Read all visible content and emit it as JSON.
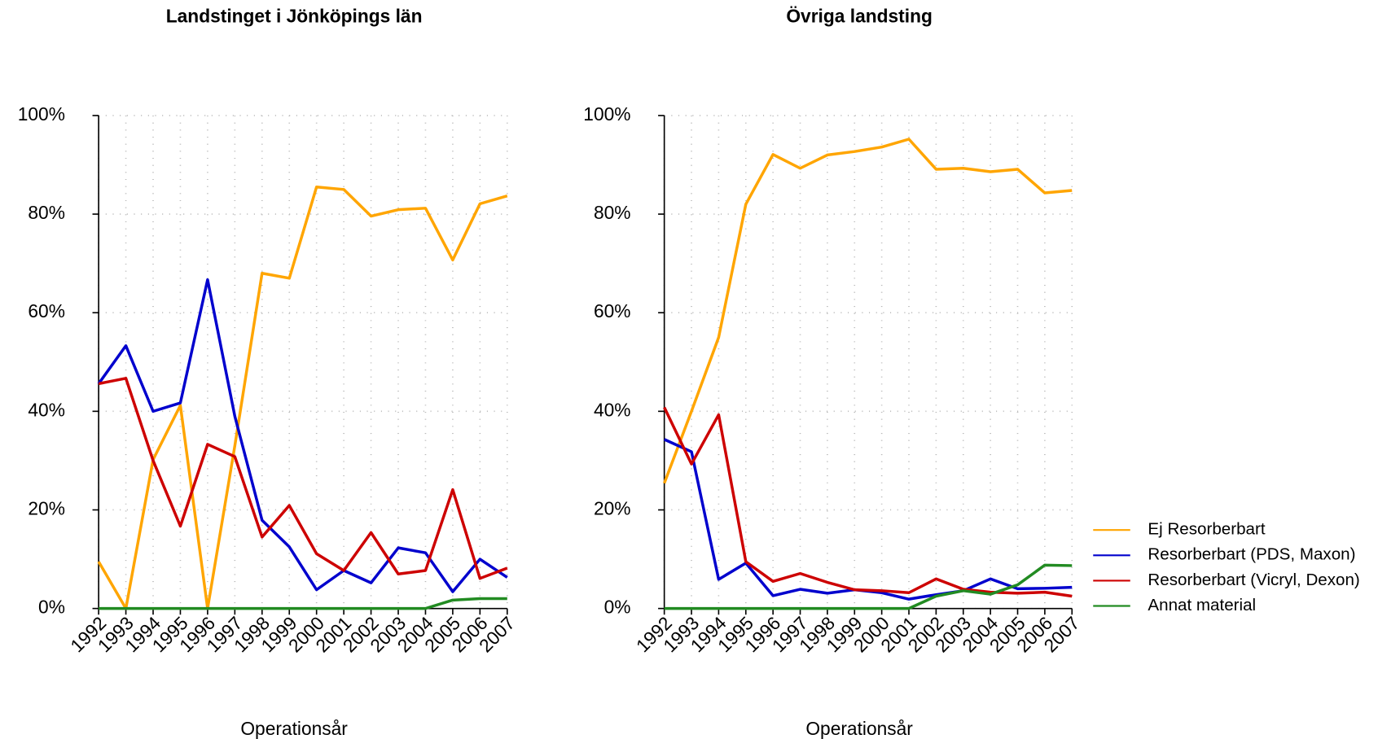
{
  "chart_data": [
    {
      "type": "line",
      "title": "Landstinget i Jönköpings län",
      "x_label": "Operationsår",
      "x": [
        1992,
        1993,
        1994,
        1995,
        1996,
        1997,
        1998,
        1999,
        2000,
        2001,
        2002,
        2003,
        2004,
        2005,
        2006,
        2007
      ],
      "xlim": [
        1992,
        2007
      ],
      "xticks": [
        1992,
        1993,
        1994,
        1995,
        1996,
        1997,
        1998,
        1999,
        2000,
        2001,
        2002,
        2003,
        2004,
        2005,
        2006,
        2007
      ],
      "ylim": [
        0,
        100
      ],
      "yticks": [
        {
          "value": 0,
          "label": "0%"
        },
        {
          "value": 20,
          "label": "20%"
        },
        {
          "value": 40,
          "label": "40%"
        },
        {
          "value": 60,
          "label": "60%"
        },
        {
          "value": 80,
          "label": "80%"
        },
        {
          "value": 100,
          "label": "100%"
        }
      ],
      "grid": true,
      "series": [
        {
          "name": "Ej Resorberbart",
          "color": "#ffa500",
          "values": [
            9.5,
            0,
            30.2,
            41.2,
            0,
            33,
            68,
            67,
            85.5,
            85,
            79.6,
            80.9,
            81.2,
            70.7,
            82.1,
            83.7
          ]
        },
        {
          "name": "Resorberbart (PDS, Maxon)",
          "color": "#0000cd",
          "values": [
            45.6,
            53.3,
            40,
            41.7,
            66.7,
            39,
            17.9,
            12.5,
            3.8,
            7.7,
            5.2,
            12.3,
            11.3,
            3.4,
            10,
            6.3
          ]
        },
        {
          "name": "Resorberbart (Vicryl, Dexon)",
          "color": "#cd0000",
          "values": [
            45.6,
            46.7,
            30,
            16.7,
            33.3,
            30.8,
            14.5,
            20.9,
            11.1,
            7.7,
            15.4,
            7,
            7.7,
            24.1,
            6.1,
            8.2
          ]
        },
        {
          "name": "Annat material",
          "color": "#228b22",
          "values": [
            0,
            0,
            0,
            0,
            0,
            0,
            0,
            0,
            0,
            0,
            0,
            0,
            0,
            1.7,
            2,
            2
          ]
        }
      ]
    },
    {
      "type": "line",
      "title": "Övriga landsting",
      "x_label": "Operationsår",
      "x": [
        1992,
        1993,
        1994,
        1995,
        1996,
        1997,
        1998,
        1999,
        2000,
        2001,
        2002,
        2003,
        2004,
        2005,
        2006,
        2007
      ],
      "xlim": [
        1992,
        2007
      ],
      "xticks": [
        1992,
        1993,
        1994,
        1995,
        1996,
        1997,
        1998,
        1999,
        2000,
        2001,
        2002,
        2003,
        2004,
        2005,
        2006,
        2007
      ],
      "ylim": [
        0,
        100
      ],
      "yticks": [
        {
          "value": 0,
          "label": "0%"
        },
        {
          "value": 20,
          "label": "20%"
        },
        {
          "value": 40,
          "label": "40%"
        },
        {
          "value": 60,
          "label": "60%"
        },
        {
          "value": 80,
          "label": "80%"
        },
        {
          "value": 100,
          "label": "100%"
        }
      ],
      "grid": true,
      "legend": "right",
      "series": [
        {
          "name": "Ej Resorberbart",
          "color": "#ffa500",
          "values": [
            25.4,
            40,
            55,
            82,
            92.1,
            89.3,
            92,
            92.7,
            93.6,
            95.2,
            89.1,
            89.3,
            88.6,
            89.1,
            84.3,
            84.8
          ]
        },
        {
          "name": "Resorberbart (PDS, Maxon)",
          "color": "#0000cd",
          "values": [
            34.3,
            31.8,
            5.9,
            9.2,
            2.6,
            3.9,
            3.1,
            3.8,
            3.2,
            1.9,
            2.8,
            3.6,
            6,
            4,
            4.1,
            4.3
          ]
        },
        {
          "name": "Resorberbart (Vicryl, Dexon)",
          "color": "#cd0000",
          "values": [
            40.8,
            29.3,
            39.3,
            9.5,
            5.5,
            7.1,
            5.3,
            3.8,
            3.6,
            3.2,
            6,
            3.9,
            3.3,
            3.1,
            3.3,
            2.5
          ]
        },
        {
          "name": "Annat material",
          "color": "#228b22",
          "values": [
            0,
            0,
            0,
            0,
            0,
            0,
            0,
            0,
            0,
            0,
            2.5,
            3.6,
            2.9,
            4.8,
            8.8,
            8.7
          ]
        }
      ]
    }
  ]
}
